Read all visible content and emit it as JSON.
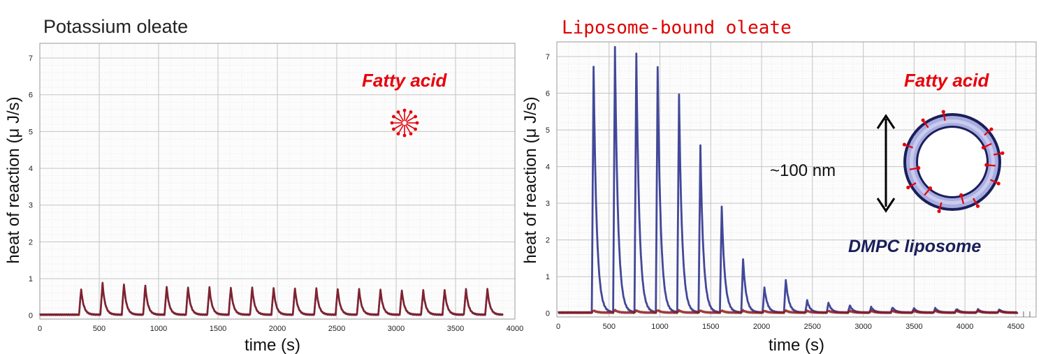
{
  "chart_data": [
    {
      "type": "line",
      "title": "Potassium oleate",
      "xlabel": "time (s)",
      "ylabel": "heat of reaction (μ J/s)",
      "xlim": [
        0,
        4000
      ],
      "ylim": [
        -0.1,
        7.4
      ],
      "xticks": [
        "0",
        "500",
        "1000",
        "1500",
        "2000",
        "2500",
        "3000",
        "3500",
        "4000"
      ],
      "yticks": [
        "0",
        "1",
        "2",
        "3",
        "4",
        "5",
        "6",
        "7"
      ],
      "grid": true,
      "x_end": 3900,
      "annotation": "Fatty acid",
      "series": [
        {
          "color": "#3a3f9a",
          "peaks": [
            {
              "t": 330,
              "h": 0.68
            },
            {
              "t": 510,
              "h": 0.85
            },
            {
              "t": 690,
              "h": 0.82
            },
            {
              "t": 870,
              "h": 0.78
            },
            {
              "t": 1050,
              "h": 0.75
            },
            {
              "t": 1230,
              "h": 0.74
            },
            {
              "t": 1410,
              "h": 0.74
            },
            {
              "t": 1590,
              "h": 0.73
            },
            {
              "t": 1770,
              "h": 0.73
            },
            {
              "t": 1950,
              "h": 0.72
            },
            {
              "t": 2130,
              "h": 0.71
            },
            {
              "t": 2310,
              "h": 0.71
            },
            {
              "t": 2490,
              "h": 0.7
            },
            {
              "t": 2670,
              "h": 0.69
            },
            {
              "t": 2850,
              "h": 0.67
            },
            {
              "t": 3030,
              "h": 0.66
            },
            {
              "t": 3210,
              "h": 0.66
            },
            {
              "t": 3390,
              "h": 0.67
            },
            {
              "t": 3570,
              "h": 0.69
            },
            {
              "t": 3750,
              "h": 0.7
            }
          ]
        },
        {
          "color": "#8b1a1a",
          "peaks": [
            {
              "t": 330,
              "h": 0.7
            },
            {
              "t": 510,
              "h": 0.86
            },
            {
              "t": 690,
              "h": 0.83
            },
            {
              "t": 870,
              "h": 0.79
            },
            {
              "t": 1050,
              "h": 0.75
            },
            {
              "t": 1230,
              "h": 0.74
            },
            {
              "t": 1410,
              "h": 0.74
            },
            {
              "t": 1590,
              "h": 0.74
            },
            {
              "t": 1770,
              "h": 0.73
            },
            {
              "t": 1950,
              "h": 0.72
            },
            {
              "t": 2130,
              "h": 0.72
            },
            {
              "t": 2310,
              "h": 0.71
            },
            {
              "t": 2490,
              "h": 0.7
            },
            {
              "t": 2670,
              "h": 0.69
            },
            {
              "t": 2850,
              "h": 0.68
            },
            {
              "t": 3030,
              "h": 0.66
            },
            {
              "t": 3210,
              "h": 0.66
            },
            {
              "t": 3390,
              "h": 0.68
            },
            {
              "t": 3570,
              "h": 0.69
            },
            {
              "t": 3750,
              "h": 0.7
            }
          ]
        }
      ]
    },
    {
      "type": "line",
      "title": "Liposome-bound oleate",
      "xlabel": "time (s)",
      "ylabel": "heat of reaction (μ J/s)",
      "xlim": [
        0,
        4700
      ],
      "ylim": [
        -0.1,
        7.4
      ],
      "xticks": [
        "0",
        "500",
        "1000",
        "1500",
        "2000",
        "2500",
        "3000",
        "3500",
        "4000",
        "4500"
      ],
      "yticks": [
        "0",
        "1",
        "2",
        "3",
        "4",
        "5",
        "6",
        "7"
      ],
      "grid": true,
      "x_end": 4520,
      "annotations": [
        "Fatty acid",
        "~100 nm",
        "DMPC liposome"
      ],
      "series": [
        {
          "color": "#2e348e",
          "peaks": [
            {
              "t": 330,
              "h": 6.7
            },
            {
              "t": 540,
              "h": 7.25
            },
            {
              "t": 750,
              "h": 7.05
            },
            {
              "t": 960,
              "h": 6.7
            },
            {
              "t": 1170,
              "h": 5.95
            },
            {
              "t": 1380,
              "h": 4.55
            },
            {
              "t": 1590,
              "h": 2.9
            },
            {
              "t": 1800,
              "h": 1.45
            },
            {
              "t": 2010,
              "h": 0.68
            },
            {
              "t": 2220,
              "h": 0.9
            },
            {
              "t": 2430,
              "h": 0.33
            },
            {
              "t": 2640,
              "h": 0.27
            },
            {
              "t": 2850,
              "h": 0.2
            },
            {
              "t": 3060,
              "h": 0.15
            },
            {
              "t": 3270,
              "h": 0.14
            },
            {
              "t": 3480,
              "h": 0.12
            },
            {
              "t": 3690,
              "h": 0.12
            },
            {
              "t": 3900,
              "h": 0.1
            },
            {
              "t": 4110,
              "h": 0.09
            },
            {
              "t": 4320,
              "h": 0.08
            }
          ]
        },
        {
          "color": "#8b1a1a",
          "peaks": [
            {
              "t": 330,
              "h": 0.06
            },
            {
              "t": 540,
              "h": 0.07
            },
            {
              "t": 750,
              "h": 0.06
            },
            {
              "t": 960,
              "h": 0.07
            },
            {
              "t": 1170,
              "h": 0.06
            },
            {
              "t": 1380,
              "h": 0.06
            },
            {
              "t": 1590,
              "h": 0.06
            },
            {
              "t": 1800,
              "h": 0.06
            },
            {
              "t": 2010,
              "h": 0.05
            },
            {
              "t": 2220,
              "h": 0.06
            },
            {
              "t": 2430,
              "h": 0.05
            },
            {
              "t": 2640,
              "h": 0.05
            },
            {
              "t": 2850,
              "h": 0.05
            },
            {
              "t": 3060,
              "h": 0.05
            },
            {
              "t": 3270,
              "h": 0.05
            },
            {
              "t": 3480,
              "h": 0.05
            },
            {
              "t": 3690,
              "h": 0.05
            },
            {
              "t": 3900,
              "h": 0.05
            },
            {
              "t": 4110,
              "h": 0.05
            },
            {
              "t": 4320,
              "h": 0.05
            }
          ]
        }
      ]
    }
  ],
  "colors": {
    "fatty_acid": "#e8000a",
    "liposome_band": "#a9acdf",
    "liposome_edge": "#1a1f5a"
  }
}
